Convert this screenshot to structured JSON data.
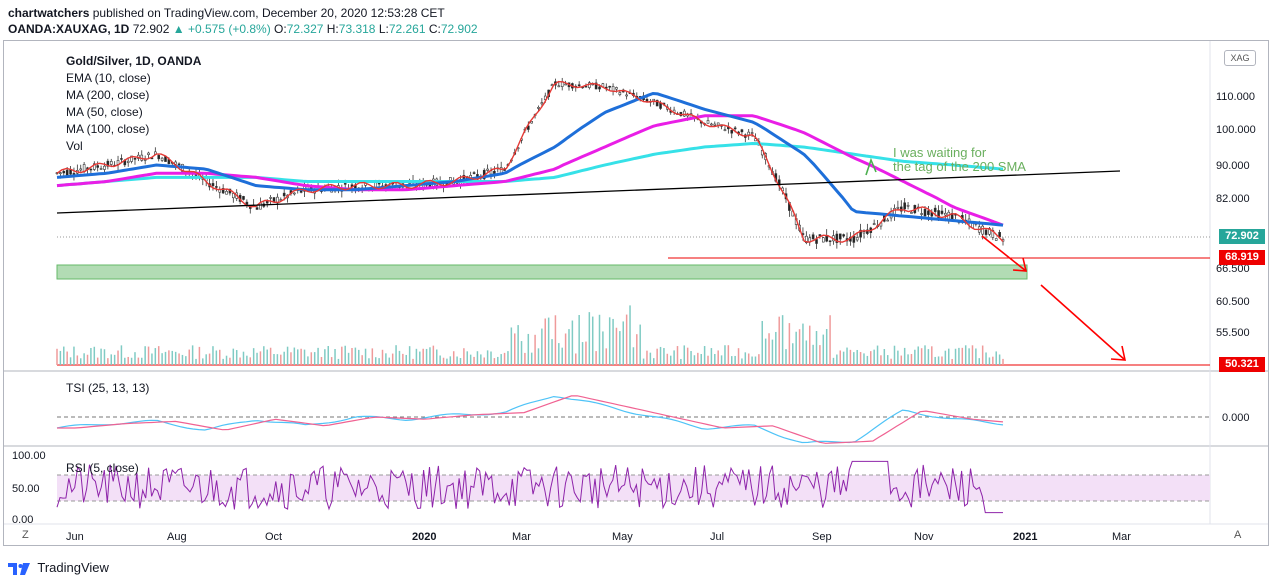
{
  "header": {
    "line1_user": "chartwatchers",
    "line1_rest": "published on TradingView.com, December 20, 2020 12:53:28 CET",
    "symbol": "OANDA:XAUXAG, 1D",
    "last": "72.902",
    "change": "+0.575 (+0.8%)",
    "o_label": "O:",
    "o_val": "72.327",
    "h_label": "H:",
    "h_val": "73.318",
    "l_label": "L:",
    "l_val": "72.261",
    "c_label": "C:",
    "c_val": "72.902"
  },
  "legend": {
    "title": "Gold/Silver, 1D, OANDA",
    "items": [
      "EMA (10, close)",
      "MA (200, close)",
      "MA (50, close)",
      "MA (100, close)",
      "Vol"
    ]
  },
  "badges": {
    "current": "72.902",
    "target1": "68.919",
    "target2": "50.321",
    "xag": "XAG"
  },
  "price_axis": [
    "110.000",
    "100.000",
    "90.000",
    "82.000",
    "66.500",
    "60.500",
    "55.500"
  ],
  "tsi_label": "TSI (25, 13, 13)",
  "tsi_axis": [
    "0.000"
  ],
  "rsi_label": "RSI (5, close)",
  "rsi_axis": [
    "100.00",
    "50.00",
    "0.00"
  ],
  "time_axis": [
    "Jun",
    "Aug",
    "Oct",
    "2020",
    "Mar",
    "May",
    "Jul",
    "Sep",
    "Nov",
    "2021",
    "Mar"
  ],
  "buttons": {
    "z": "Z",
    "a": "A"
  },
  "annotation": [
    "I was waiting for",
    "the tag  of the 200 SMA"
  ],
  "footer": "TradingView",
  "colors": {
    "ema10": "#e53935",
    "ma200": "#36e1e8",
    "ma50": "#1e6fd9",
    "ma100": "#e91ee6",
    "trend": "#000000",
    "support_zone": "#a5d6a7",
    "arrows": "#ff0000",
    "tsi": "#f06292",
    "tsi_signal": "#4fc3f7",
    "rsi": "#8e24aa",
    "rsi_band": "#f3e0f7"
  },
  "chart_data": {
    "type": "line",
    "title": "Gold/Silver, 1D, OANDA",
    "x": [
      "2019-05",
      "2019-06",
      "2019-07",
      "2019-08",
      "2019-09",
      "2019-10",
      "2019-11",
      "2019-12",
      "2020-01",
      "2020-02",
      "2020-03",
      "2020-04",
      "2020-05",
      "2020-06",
      "2020-07",
      "2020-08",
      "2020-09",
      "2020-10",
      "2020-11",
      "2020-12"
    ],
    "series": [
      {
        "name": "EMA (10, close)",
        "values": [
          88,
          90,
          93,
          86,
          80,
          84,
          85,
          85,
          86,
          89,
          114,
          113,
          108,
          102,
          98,
          73,
          73,
          80,
          78,
          73
        ]
      },
      {
        "name": "MA (50, close)",
        "values": [
          87,
          88,
          90,
          89,
          85,
          84,
          84,
          85,
          86,
          88,
          95,
          105,
          111,
          106,
          102,
          93,
          79,
          78,
          77,
          76
        ]
      },
      {
        "name": "MA (100, close)",
        "values": [
          85,
          86,
          88,
          88,
          87,
          85,
          84,
          84,
          85,
          86,
          89,
          95,
          101,
          104,
          104,
          99,
          92,
          86,
          80,
          76
        ]
      },
      {
        "name": "MA (200, close)",
        "values": [
          85,
          86,
          87,
          87,
          87,
          86,
          86,
          86,
          86,
          86,
          87,
          90,
          93,
          95,
          96,
          95,
          93,
          91,
          90,
          89
        ]
      }
    ],
    "levels": [
      72.902,
      68.919,
      50.321
    ],
    "ylim": [
      50,
      125
    ]
  }
}
